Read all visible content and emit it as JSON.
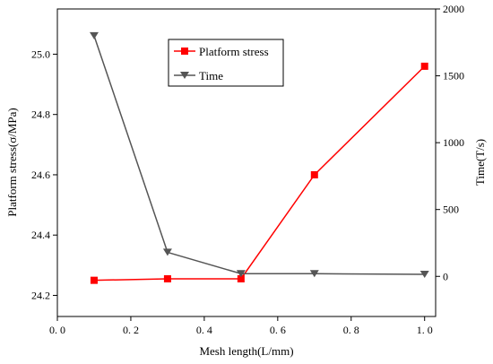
{
  "chart_data": {
    "type": "line",
    "title": "",
    "xlabel": "Mesh length(L/mm)",
    "ylabel_left": "Platform stress(σ/MPa)",
    "ylabel_right": "Time(T/s)",
    "xlim": [
      0.0,
      1.03
    ],
    "ylim_left": [
      24.13,
      25.15
    ],
    "ylim_right": [
      -300,
      2000
    ],
    "x_ticks": [
      0.0,
      0.2,
      0.4,
      0.6,
      0.8,
      1.0
    ],
    "x_tick_labels": [
      "0. 0",
      "0. 2",
      "0. 4",
      "0. 6",
      "0. 8",
      "1. 0"
    ],
    "y_left_ticks": [
      24.2,
      24.4,
      24.6,
      24.8,
      25.0
    ],
    "y_left_tick_labels": [
      "24.2",
      "24.4",
      "24.6",
      "24.8",
      "25.0"
    ],
    "y_right_ticks": [
      0,
      500,
      1000,
      1500,
      2000
    ],
    "y_right_tick_labels": [
      "0",
      "500",
      "1000",
      "1500",
      "2000"
    ],
    "grid": false,
    "legend_position": "top-center",
    "series": [
      {
        "name": "Platform stress",
        "axis": "left",
        "color": "#ff0000",
        "marker": "square",
        "x": [
          0.1,
          0.3,
          0.5,
          0.7,
          1.0
        ],
        "y": [
          24.25,
          24.255,
          24.255,
          24.6,
          24.96
        ]
      },
      {
        "name": "Time",
        "axis": "right",
        "color": "#555555",
        "marker": "triangle-down",
        "x": [
          0.1,
          0.3,
          0.5,
          0.7,
          1.0
        ],
        "y": [
          1800,
          180,
          20,
          20,
          15
        ]
      }
    ]
  }
}
